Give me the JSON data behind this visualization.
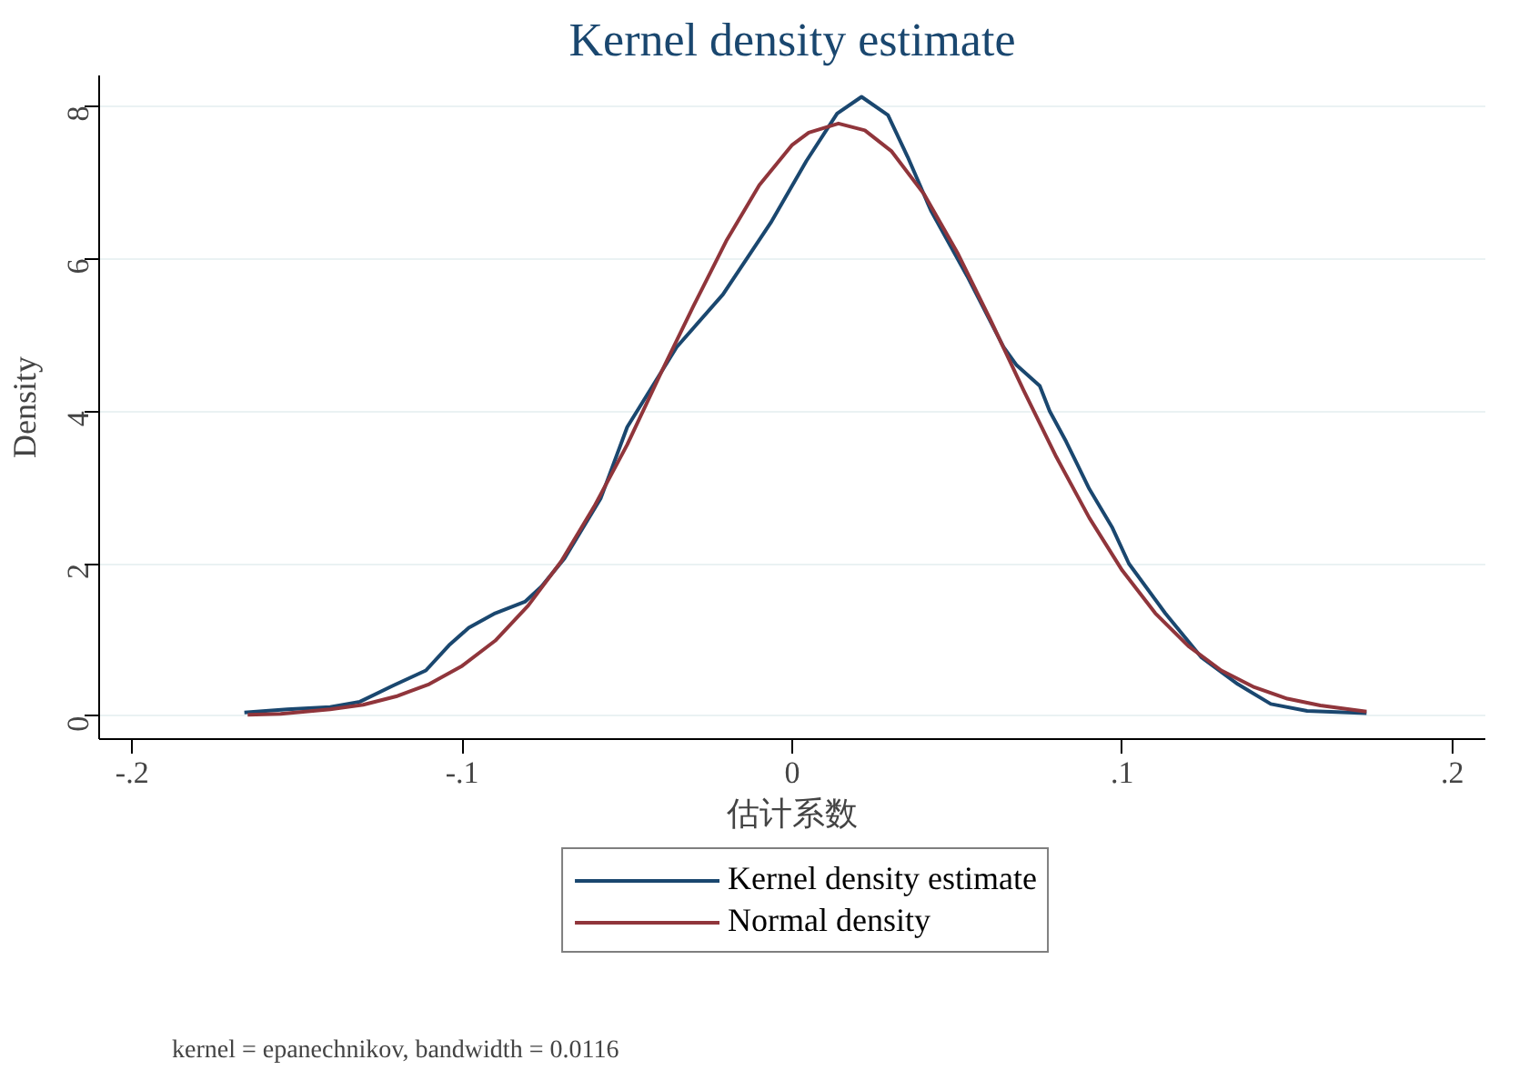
{
  "chart_data": {
    "type": "line",
    "title": "Kernel density estimate",
    "xlabel": "估计系数",
    "ylabel": "Density",
    "series": [
      {
        "name": "Kernel density estimate",
        "color": "#1a476f",
        "x": [
          -0.166,
          -0.153,
          -0.14,
          -0.131,
          -0.121,
          -0.111,
          -0.104,
          -0.098,
          -0.09,
          -0.081,
          -0.076,
          -0.069,
          -0.058,
          -0.05,
          -0.035,
          -0.021,
          -0.0065,
          0.0043,
          0.0136,
          0.021,
          0.029,
          0.035,
          0.042,
          0.053,
          0.064,
          0.068,
          0.075,
          0.078,
          0.083,
          0.09,
          0.097,
          0.102,
          0.113,
          0.124,
          0.135,
          0.145,
          0.156,
          0.174
        ],
        "values": [
          0.05,
          0.09,
          0.12,
          0.19,
          0.4,
          0.6,
          0.93,
          1.16,
          1.35,
          1.5,
          1.7,
          2.07,
          2.86,
          3.79,
          4.84,
          5.53,
          6.47,
          7.28,
          7.9,
          8.12,
          7.88,
          7.33,
          6.63,
          5.77,
          4.84,
          4.6,
          4.33,
          4.0,
          3.6,
          2.98,
          2.47,
          2.0,
          1.35,
          0.77,
          0.42,
          0.16,
          0.07,
          0.04
        ]
      },
      {
        "name": "Normal density",
        "color": "#90353b",
        "x": [
          -0.165,
          -0.155,
          -0.14,
          -0.13,
          -0.12,
          -0.11,
          -0.1,
          -0.09,
          -0.08,
          -0.07,
          -0.06,
          -0.05,
          -0.04,
          -0.03,
          -0.02,
          -0.01,
          0,
          0.005,
          0.014,
          0.022,
          0.03,
          0.04,
          0.05,
          0.06,
          0.07,
          0.08,
          0.09,
          0.1,
          0.11,
          0.12,
          0.13,
          0.14,
          0.15,
          0.16,
          0.174
        ],
        "values": [
          0.02,
          0.03,
          0.09,
          0.15,
          0.26,
          0.42,
          0.66,
          0.99,
          1.45,
          2.03,
          2.75,
          3.56,
          4.48,
          5.37,
          6.23,
          6.96,
          7.49,
          7.65,
          7.77,
          7.68,
          7.41,
          6.84,
          6.08,
          5.2,
          4.28,
          3.4,
          2.6,
          1.91,
          1.35,
          0.92,
          0.6,
          0.38,
          0.23,
          0.14,
          0.06
        ]
      }
    ],
    "xlim": [
      -0.21,
      0.21
    ],
    "ylim": [
      -0.3,
      8.4
    ],
    "xticks": [
      {
        "value": -0.2,
        "label": "-.2"
      },
      {
        "value": -0.1,
        "label": "-.1"
      },
      0,
      {
        "value": 0.1,
        "label": ".1"
      },
      {
        "value": 0.2,
        "label": ".2"
      }
    ],
    "yticks": [
      0,
      2,
      4,
      6,
      8
    ],
    "grid": "y",
    "legend": "bottom",
    "marker": "none",
    "line_style": "solid",
    "annotations": [
      "kernel = epanechnikov, bandwidth = 0.0116"
    ]
  }
}
